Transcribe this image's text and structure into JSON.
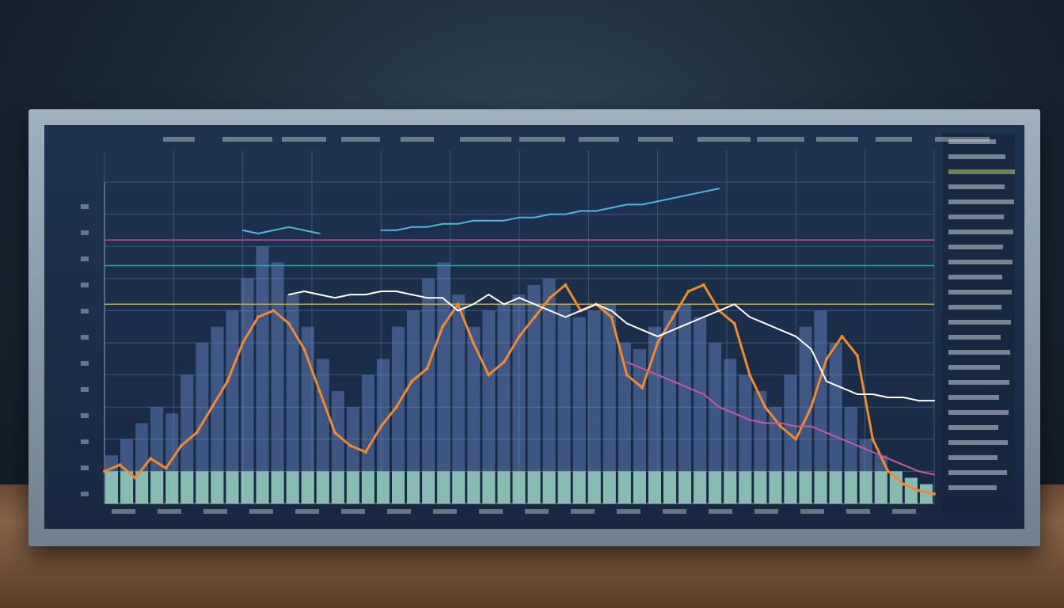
{
  "chart_data": {
    "type": "line",
    "title": "",
    "xlabel": "",
    "ylabel": "",
    "ylim": [
      0,
      100
    ],
    "grid": true,
    "tick_labels_legible": false,
    "series": [
      {
        "color": "#f08a30",
        "values": [
          10,
          12,
          8,
          14,
          11,
          18,
          22,
          30,
          38,
          50,
          58,
          60,
          56,
          48,
          35,
          22,
          18,
          16,
          24,
          30,
          38,
          42,
          55,
          62,
          50,
          40,
          44,
          52,
          58,
          64,
          68,
          60,
          62,
          58,
          40,
          36,
          50,
          58,
          66,
          68,
          60,
          56,
          40,
          30,
          24,
          20,
          30,
          45,
          52,
          46,
          20,
          10,
          6,
          4,
          3
        ]
      },
      {
        "color": "#ffffff",
        "values": [
          null,
          null,
          null,
          null,
          null,
          null,
          null,
          null,
          null,
          null,
          null,
          null,
          65,
          66,
          65,
          64,
          65,
          65,
          66,
          66,
          65,
          64,
          64,
          60,
          62,
          65,
          62,
          64,
          62,
          60,
          58,
          60,
          62,
          60,
          56,
          54,
          52,
          54,
          56,
          58,
          60,
          62,
          58,
          56,
          54,
          52,
          48,
          38,
          36,
          34,
          34,
          33,
          33,
          32,
          32
        ]
      },
      {
        "color": "#4fb7e0",
        "values": [
          null,
          null,
          null,
          null,
          null,
          null,
          null,
          null,
          null,
          85,
          84,
          85,
          86,
          85,
          84,
          null,
          null,
          null,
          85,
          85,
          86,
          86,
          87,
          87,
          88,
          88,
          88,
          89,
          89,
          90,
          90,
          91,
          91,
          92,
          93,
          93,
          94,
          95,
          96,
          97,
          98,
          null,
          null,
          null,
          null,
          null,
          null,
          null,
          null,
          null,
          null,
          null,
          null,
          null,
          null
        ]
      },
      {
        "color": "#c65aa0",
        "values": [
          null,
          null,
          null,
          null,
          null,
          null,
          null,
          null,
          null,
          null,
          null,
          null,
          null,
          null,
          null,
          null,
          null,
          null,
          null,
          null,
          null,
          null,
          null,
          null,
          null,
          null,
          null,
          null,
          null,
          null,
          null,
          null,
          null,
          null,
          44,
          42,
          40,
          38,
          36,
          34,
          30,
          28,
          26,
          25,
          25,
          24,
          24,
          22,
          20,
          18,
          16,
          14,
          12,
          10,
          9
        ]
      }
    ],
    "bars": {
      "color": "#6c8ccc",
      "values": [
        15,
        20,
        25,
        30,
        28,
        40,
        50,
        55,
        60,
        70,
        80,
        75,
        65,
        55,
        45,
        35,
        30,
        40,
        45,
        55,
        60,
        70,
        75,
        65,
        55,
        60,
        62,
        65,
        68,
        70,
        62,
        58,
        60,
        62,
        50,
        48,
        55,
        60,
        62,
        58,
        50,
        45,
        40,
        35,
        30,
        40,
        55,
        60,
        50,
        30,
        20,
        15,
        10,
        8,
        6
      ]
    },
    "reference_lines": [
      {
        "color": "#c9a93a",
        "value": 62
      },
      {
        "color": "#20b0a0",
        "value": 74
      },
      {
        "color": "#c04ab0",
        "value": 82
      }
    ]
  }
}
